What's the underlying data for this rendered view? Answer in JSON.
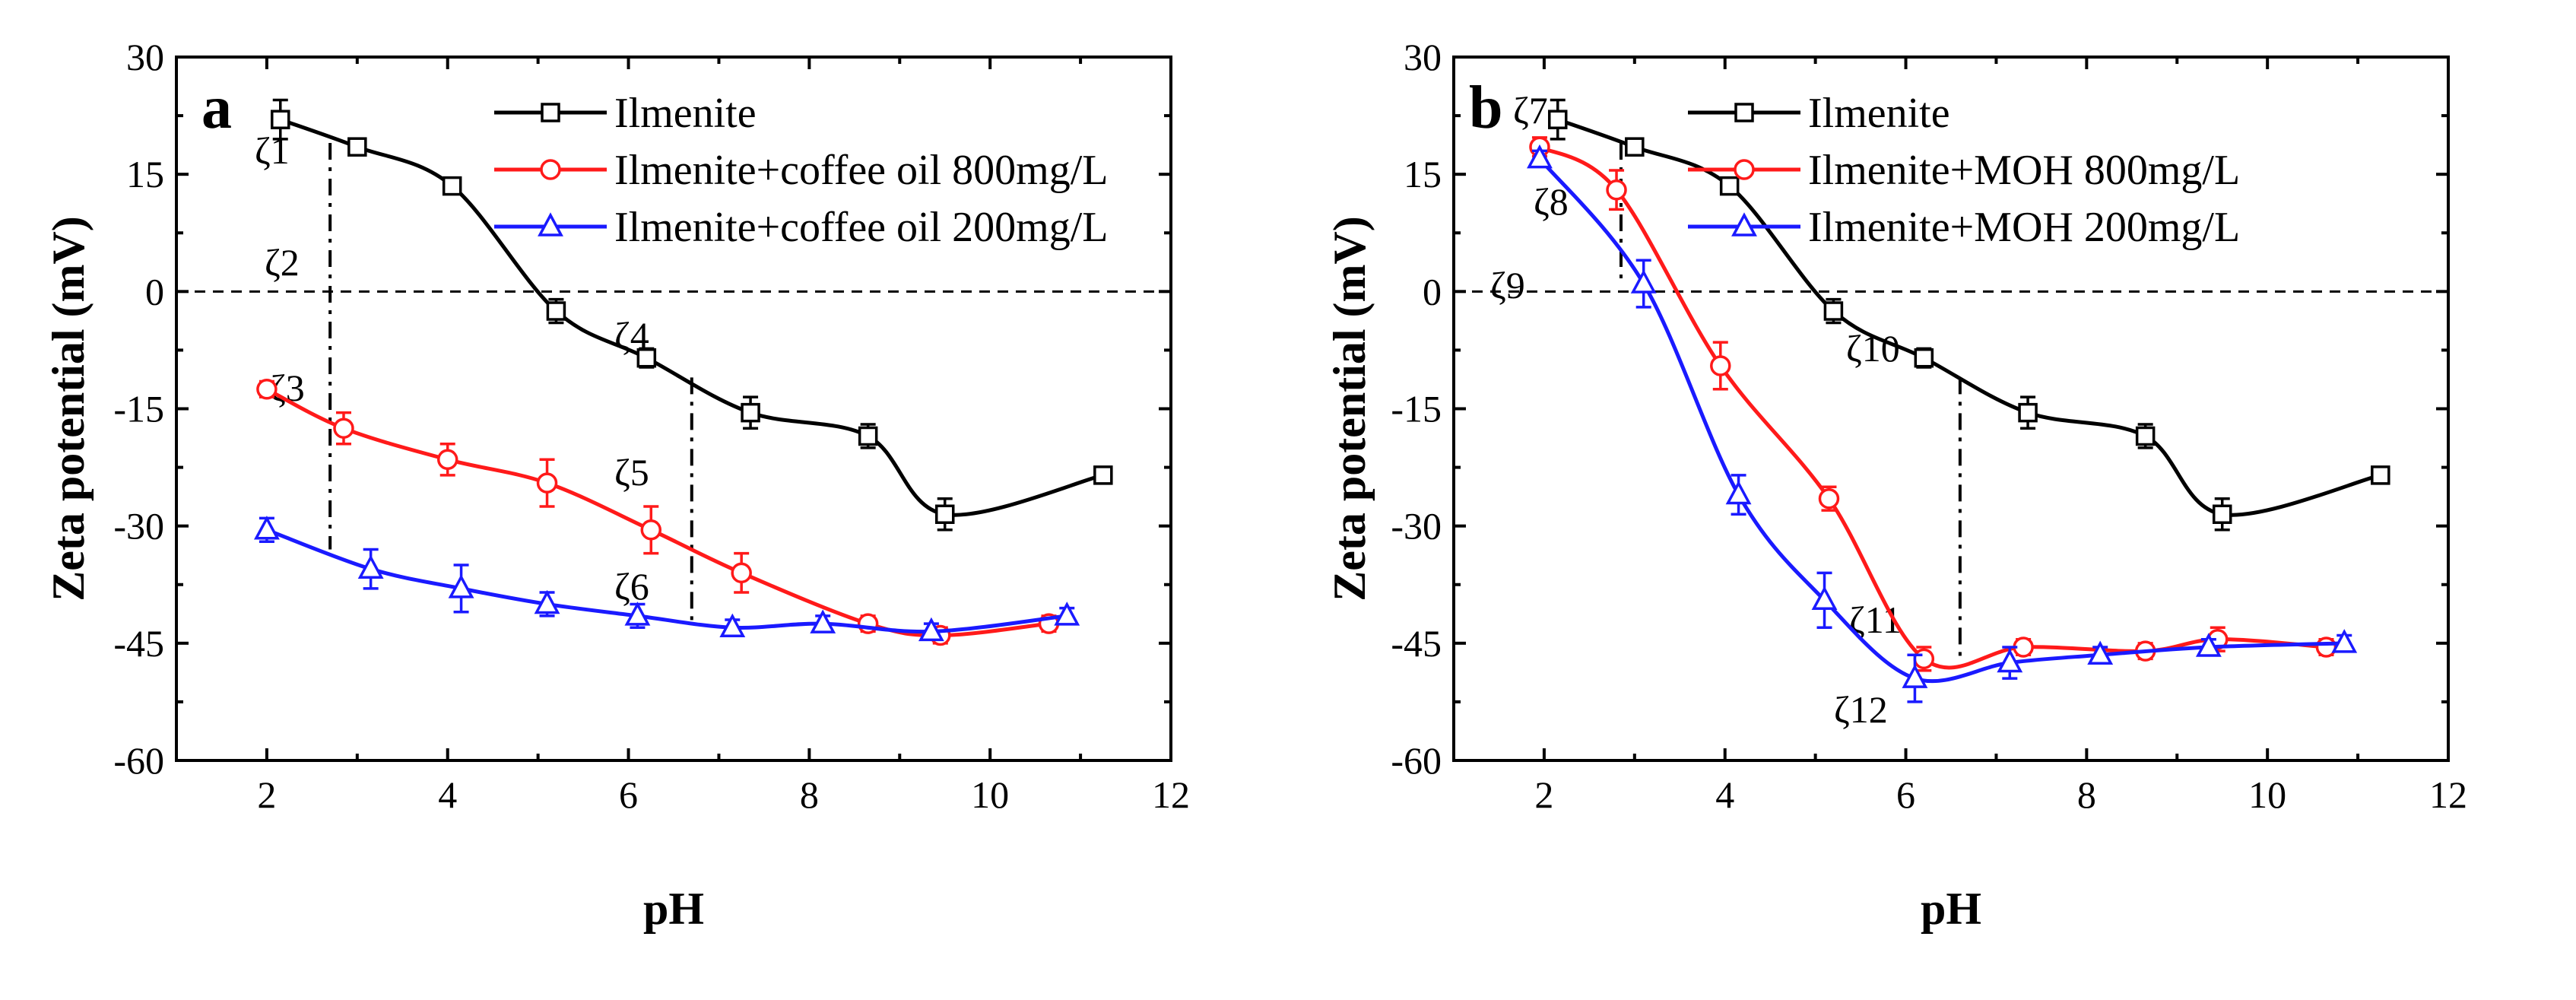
{
  "colors": {
    "black": "#000000",
    "red": "#ff1a1a",
    "blue": "#1a1aff"
  },
  "chart_data": [
    {
      "type": "line",
      "panel_label": "a",
      "xlabel": "pH",
      "ylabel": "Zeta potential (mV)",
      "xlim": [
        1,
        12
      ],
      "ylim": [
        -60,
        30
      ],
      "xticks": [
        2,
        4,
        6,
        8,
        10,
        12
      ],
      "yticks": [
        30,
        15,
        0,
        -15,
        -30,
        -45,
        -60
      ],
      "xtick_labels": [
        "2",
        "4",
        "6",
        "8",
        "10",
        "12"
      ],
      "ytick_labels": [
        "30",
        "15",
        "0",
        "-15",
        "-30",
        "-45",
        "-60"
      ],
      "legend_position": "top-right",
      "series": [
        {
          "name": "Ilmenite",
          "color": "#000000",
          "marker": "square",
          "points": [
            [
              2.15,
              22
            ],
            [
              3.0,
              18.5
            ],
            [
              4.05,
              13.5
            ],
            [
              5.2,
              -2.5
            ],
            [
              6.2,
              -8.5
            ],
            [
              7.35,
              -15.5
            ],
            [
              8.65,
              -18.5
            ],
            [
              9.5,
              -28.5
            ],
            [
              11.25,
              -23.5
            ]
          ],
          "errors": [
            2.5,
            1.0,
            0.8,
            1.5,
            1.2,
            2.0,
            1.5,
            2.0,
            0.5
          ]
        },
        {
          "name": "Ilmenite+coffee oil 800mg/L",
          "color": "#ff1a1a",
          "marker": "circle",
          "points": [
            [
              2.0,
              -12.5
            ],
            [
              2.85,
              -17.5
            ],
            [
              4.0,
              -21.5
            ],
            [
              5.1,
              -24.5
            ],
            [
              6.25,
              -30.5
            ],
            [
              7.25,
              -36
            ],
            [
              8.65,
              -42.5
            ],
            [
              9.45,
              -44
            ],
            [
              10.65,
              -42.5
            ]
          ],
          "errors": [
            1.0,
            2.0,
            2.0,
            3.0,
            3.0,
            2.5,
            1.0,
            1.0,
            1.0
          ]
        },
        {
          "name": "Ilmenite+coffee oil 200mg/L",
          "color": "#1a1aff",
          "marker": "triangle",
          "points": [
            [
              2.0,
              -30.5
            ],
            [
              3.15,
              -35.5
            ],
            [
              4.15,
              -38
            ],
            [
              5.1,
              -40
            ],
            [
              6.1,
              -41.5
            ],
            [
              7.15,
              -43
            ],
            [
              8.15,
              -42.5
            ],
            [
              9.35,
              -43.5
            ],
            [
              10.85,
              -41.5
            ]
          ],
          "errors": [
            1.5,
            2.5,
            3.0,
            1.5,
            1.5,
            1.0,
            1.0,
            1.0,
            1.0
          ]
        }
      ],
      "guides": [
        {
          "x": 2.7,
          "y_from": 19,
          "y_to": -33,
          "labels": [
            "ζ1",
            "ζ2",
            "ζ3"
          ]
        },
        {
          "x": 6.7,
          "y_from": -11,
          "y_to": -42.5,
          "labels": [
            "ζ4",
            "ζ5",
            "ζ6"
          ]
        }
      ]
    },
    {
      "type": "line",
      "panel_label": "b",
      "xlabel": "pH",
      "ylabel": "Zeta potential (mV)",
      "xlim": [
        1,
        12
      ],
      "ylim": [
        -60,
        30
      ],
      "xticks": [
        2,
        4,
        6,
        8,
        10,
        12
      ],
      "yticks": [
        30,
        15,
        0,
        -15,
        -30,
        -45,
        -60
      ],
      "xtick_labels": [
        "2",
        "4",
        "6",
        "8",
        "10",
        "12"
      ],
      "ytick_labels": [
        "30",
        "15",
        "0",
        "-15",
        "-30",
        "-45",
        "-60"
      ],
      "legend_position": "top-right",
      "series": [
        {
          "name": "Ilmenite",
          "color": "#000000",
          "marker": "square",
          "points": [
            [
              2.15,
              22
            ],
            [
              3.0,
              18.5
            ],
            [
              4.05,
              13.5
            ],
            [
              5.2,
              -2.5
            ],
            [
              6.2,
              -8.5
            ],
            [
              7.35,
              -15.5
            ],
            [
              8.65,
              -18.5
            ],
            [
              9.5,
              -28.5
            ],
            [
              11.25,
              -23.5
            ]
          ],
          "errors": [
            2.5,
            1.0,
            0.8,
            1.5,
            1.2,
            2.0,
            1.5,
            2.0,
            0.5
          ]
        },
        {
          "name": "Ilmenite+MOH 800mg/L",
          "color": "#ff1a1a",
          "marker": "circle",
          "points": [
            [
              1.95,
              18.5
            ],
            [
              2.8,
              13
            ],
            [
              3.95,
              -9.5
            ],
            [
              5.15,
              -26.5
            ],
            [
              6.2,
              -47
            ],
            [
              7.3,
              -45.5
            ],
            [
              8.65,
              -46
            ],
            [
              9.45,
              -44.5
            ],
            [
              10.65,
              -45.5
            ]
          ],
          "errors": [
            1.2,
            2.5,
            3.0,
            1.5,
            1.5,
            1.0,
            1.0,
            1.5,
            1.0
          ]
        },
        {
          "name": "Ilmenite+MOH 200mg/L",
          "color": "#1a1aff",
          "marker": "triangle",
          "points": [
            [
              1.95,
              17
            ],
            [
              3.1,
              1
            ],
            [
              4.15,
              -26
            ],
            [
              5.1,
              -39.5
            ],
            [
              6.1,
              -49.5
            ],
            [
              7.15,
              -47.5
            ],
            [
              8.15,
              -46.5
            ],
            [
              9.35,
              -45.5
            ],
            [
              10.85,
              -45
            ]
          ],
          "errors": [
            1.0,
            3.0,
            2.5,
            3.5,
            3.0,
            2.0,
            1.0,
            1.0,
            1.0
          ]
        }
      ],
      "guides": [
        {
          "x": 2.85,
          "y_from": 19,
          "y_to": 1,
          "labels": [
            "ζ7",
            "ζ8",
            "ζ9"
          ]
        },
        {
          "x": 6.6,
          "y_from": -11,
          "y_to": -47.5,
          "labels": [
            "ζ10",
            "ζ11",
            "ζ12"
          ]
        }
      ]
    }
  ]
}
